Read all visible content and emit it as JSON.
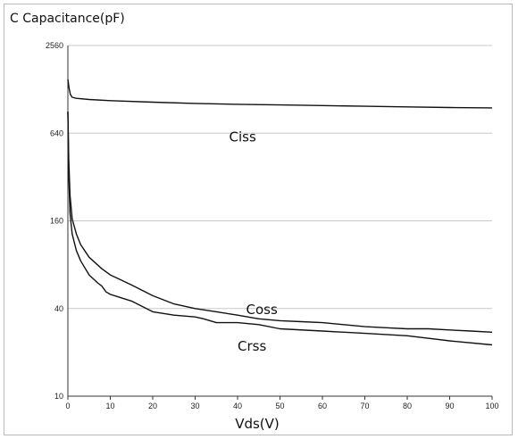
{
  "chart_data": {
    "type": "line",
    "title": "C Capacitance(pF)",
    "xlabel": "Vds(V)",
    "ylabel": "",
    "xlim": [
      0,
      100
    ],
    "ylim": [
      10,
      2560
    ],
    "yscale": "log",
    "x_ticks": [
      0,
      10,
      20,
      30,
      40,
      50,
      60,
      70,
      80,
      90,
      100
    ],
    "y_ticks": [
      10,
      40,
      160,
      640,
      2560
    ],
    "grid": "horizontal",
    "colors": {
      "line": "#111111",
      "grid": "#c8c8c8",
      "axis": "#333333"
    },
    "series": [
      {
        "name": "Ciss",
        "x": [
          0,
          0.3,
          0.6,
          1,
          2,
          5,
          10,
          20,
          30,
          40,
          50,
          60,
          70,
          80,
          90,
          100
        ],
        "y": [
          1500,
          1300,
          1180,
          1130,
          1110,
          1090,
          1070,
          1045,
          1025,
          1010,
          1000,
          990,
          980,
          970,
          960,
          955
        ]
      },
      {
        "name": "Coss",
        "x": [
          0,
          0.2,
          0.5,
          1,
          2,
          3,
          5,
          8,
          10,
          15,
          20,
          25,
          30,
          35,
          40,
          45,
          50,
          55,
          60,
          65,
          70,
          75,
          80,
          85,
          90,
          95,
          100
        ],
        "y": [
          900,
          420,
          240,
          165,
          130,
          110,
          90,
          75,
          68,
          58,
          49,
          43,
          40,
          38,
          36,
          34,
          33,
          32.5,
          32,
          31,
          30,
          29.5,
          29,
          29,
          28.5,
          28,
          27.5
        ]
      },
      {
        "name": "Crss",
        "x": [
          0,
          0.2,
          0.5,
          1,
          2,
          3,
          5,
          7,
          8,
          9,
          10,
          15,
          20,
          25,
          30,
          32,
          35,
          40,
          45,
          50,
          60,
          70,
          80,
          90,
          100
        ],
        "y": [
          900,
          330,
          180,
          130,
          100,
          85,
          68,
          60,
          57,
          52,
          50,
          45,
          38,
          36,
          35,
          34,
          32,
          32,
          31,
          29,
          28,
          27,
          26,
          24,
          22.5
        ]
      }
    ]
  }
}
